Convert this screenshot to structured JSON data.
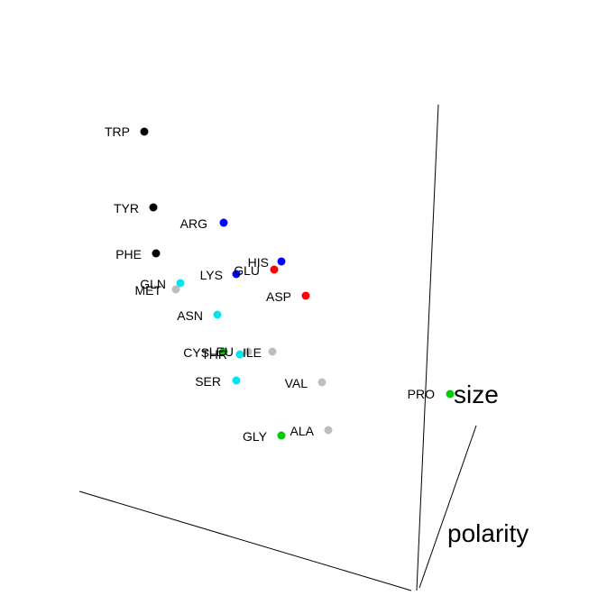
{
  "chart_data": {
    "type": "scatter",
    "projection": "3d",
    "title": "",
    "axes": [
      {
        "name": "size"
      },
      {
        "name": "polarity"
      },
      {
        "name": ""
      }
    ],
    "grid": false,
    "legend": false,
    "colors": {
      "black": "#000000",
      "blue": "#0000ff",
      "red": "#ff0000",
      "cyan": "#00e5ee",
      "green": "#00cd00",
      "grey": "#bebebe"
    },
    "points": [
      {
        "label": "TRP",
        "color": "#000000"
      },
      {
        "label": "TYR",
        "color": "#000000"
      },
      {
        "label": "PHE",
        "color": "#000000"
      },
      {
        "label": "ARG",
        "color": "#0000ff"
      },
      {
        "label": "HIS",
        "color": "#0000ff"
      },
      {
        "label": "LYS",
        "color": "#0000ff"
      },
      {
        "label": "GLU",
        "color": "#ff0000"
      },
      {
        "label": "ASP",
        "color": "#ff0000"
      },
      {
        "label": "GLN",
        "color": "#00e5ee"
      },
      {
        "label": "MET",
        "color": "#bebebe"
      },
      {
        "label": "ASN",
        "color": "#00e5ee"
      },
      {
        "label": "CYS",
        "color": "#00cd00"
      },
      {
        "label": "LEU",
        "color": "#bebebe"
      },
      {
        "label": "THR",
        "color": "#00e5ee"
      },
      {
        "label": "ILE",
        "color": "#bebebe"
      },
      {
        "label": "SER",
        "color": "#00e5ee"
      },
      {
        "label": "VAL",
        "color": "#bebebe"
      },
      {
        "label": "PRO",
        "color": "#00cd00"
      },
      {
        "label": "ALA",
        "color": "#bebebe"
      },
      {
        "label": "GLY",
        "color": "#00cd00"
      }
    ]
  }
}
